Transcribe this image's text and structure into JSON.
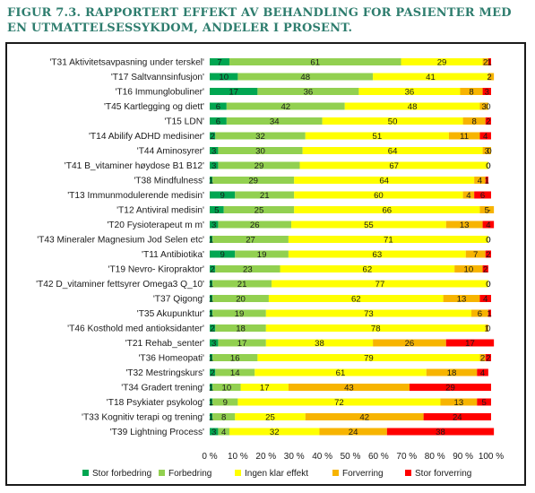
{
  "caption": "FIGUR 7.3. RAPPORTERT EFFEKT AV BEHANDLING FOR PASIENTER MED EN UTMATTELSESSYKDOM, ANDELER I PROSENT.",
  "chart_data": {
    "type": "bar",
    "orientation": "horizontal",
    "stacked": true,
    "title": "",
    "xlabel": "",
    "ylabel": "",
    "xlim": [
      0,
      100
    ],
    "x_ticks": [
      "0 %",
      "10 %",
      "20 %",
      "30 %",
      "40 %",
      "50 %",
      "60 %",
      "70 %",
      "80 %",
      "90 %",
      "100 %"
    ],
    "legend_position": "bottom",
    "grid": false,
    "categories": [
      "'T31 Aktivitetsavpasning under terskel'",
      "'T17 Saltvannsinfusjon'",
      "'T16 Immunglobuliner'",
      "'T45 Kartlegging og diett'",
      "'T15 LDN'",
      "'T14 Abilify  ADHD medisiner'",
      "'T44 Aminosyrer'",
      "'T41 B_vitaminer  høydose B1  B12'",
      "'T38 Mindfulness'",
      "'T13 Immunmodulerende medisin'",
      "'T12 Antiviral medisin'",
      "'T20 Fysioterapeut m m'",
      "'T43 Mineraler Magnesium Jod Selen etc'",
      "'T11 Antibiotika'",
      "'T19 Nevro- Kiropraktor'",
      "'T42 D_vitaminer  fettsyrer  Omega3  Q_10'",
      "'T37 Qigong'",
      "'T35 Akupunktur'",
      "'T46 Kosthold med antioksidanter'",
      "'T21 Rehab_senter'",
      "'T36 Homeopati'",
      "'T32 Mestringskurs'",
      "'T34 Gradert trening'",
      "'T18 Psykiater psykolog'",
      "'T33 Kognitiv terapi og trening'",
      "'T39 Lightning Process'"
    ],
    "series": [
      {
        "name": "Stor forbedring",
        "color": "#00a651",
        "values": [
          7,
          10,
          17,
          6,
          6,
          2,
          3,
          3,
          1,
          9,
          5,
          3,
          1,
          9,
          2,
          1,
          1,
          1,
          2,
          3,
          1,
          2,
          1,
          1,
          1,
          3
        ]
      },
      {
        "name": "Forbedring",
        "color": "#92d050",
        "values": [
          61,
          48,
          36,
          42,
          34,
          32,
          30,
          29,
          29,
          21,
          25,
          26,
          27,
          19,
          23,
          21,
          20,
          19,
          18,
          17,
          16,
          14,
          10,
          9,
          8,
          4
        ]
      },
      {
        "name": "Ingen klar effekt",
        "color": "#ffff00",
        "values": [
          29,
          41,
          36,
          48,
          50,
          51,
          64,
          67,
          64,
          60,
          66,
          55,
          71,
          63,
          62,
          77,
          62,
          73,
          78,
          38,
          79,
          61,
          17,
          72,
          25,
          32
        ]
      },
      {
        "name": "Forverring",
        "color": "#f7b400",
        "values": [
          2,
          2,
          8,
          3,
          8,
          11,
          3,
          0,
          4,
          4,
          5,
          13,
          0,
          7,
          10,
          0,
          13,
          6,
          1,
          26,
          2,
          18,
          43,
          13,
          42,
          24
        ]
      },
      {
        "name": "Stor forverring",
        "color": "#ff0000",
        "values": [
          1,
          0,
          3,
          0,
          2,
          4,
          0,
          0,
          1,
          6,
          0,
          4,
          0,
          2,
          2,
          0,
          4,
          1,
          0,
          17,
          2,
          4,
          29,
          5,
          24,
          38
        ]
      }
    ],
    "data_labels": [
      [
        "7",
        "61",
        "29",
        "2",
        "1"
      ],
      [
        "10",
        "48",
        "41",
        "2",
        ""
      ],
      [
        "17",
        "36",
        "36",
        "8",
        "3"
      ],
      [
        "6",
        "42",
        "48",
        "3",
        "0"
      ],
      [
        "6",
        "34",
        "50",
        "8",
        "2"
      ],
      [
        "2",
        "32",
        "51",
        "11",
        "4"
      ],
      [
        "3",
        "30",
        "64",
        "3",
        "0"
      ],
      [
        "3",
        "29",
        "67",
        "0",
        "0"
      ],
      [
        "1",
        "29",
        "64",
        "4",
        "1"
      ],
      [
        "9",
        "21",
        "60",
        "4",
        "6"
      ],
      [
        "5",
        "25",
        "66",
        "5",
        "-"
      ],
      [
        "3",
        "26",
        "55",
        "13",
        "4"
      ],
      [
        "1",
        "27",
        "71",
        "0",
        "0"
      ],
      [
        "9",
        "19",
        "63",
        "7",
        "2"
      ],
      [
        "2",
        "23",
        "62",
        "10",
        "2"
      ],
      [
        "1",
        "21",
        "77",
        "0",
        "0"
      ],
      [
        "1",
        "20",
        "62",
        "13",
        "4"
      ],
      [
        "1",
        "19",
        "73",
        "6",
        "1"
      ],
      [
        "2",
        "18",
        "78",
        "1",
        "0"
      ],
      [
        "3",
        "17",
        "38",
        "26",
        "17"
      ],
      [
        "1",
        "16",
        "79",
        "2",
        "2"
      ],
      [
        "2",
        "14",
        "61",
        "18",
        "4"
      ],
      [
        "1",
        "10",
        "17",
        "43",
        "29"
      ],
      [
        "1",
        "9",
        "72",
        "13",
        "5"
      ],
      [
        "1",
        "8",
        "25",
        "42",
        "24"
      ],
      [
        "3",
        "4",
        "32",
        "24",
        "38"
      ]
    ]
  }
}
